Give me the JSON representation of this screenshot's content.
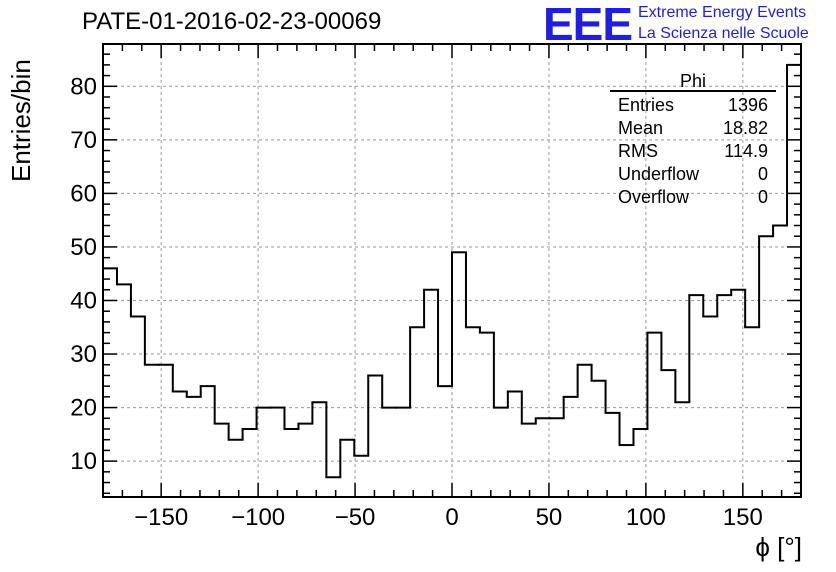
{
  "header": {
    "title": "PATE-01-2016-02-23-00069",
    "logo_mark": "EEE",
    "logo_line1": "Extreme Energy Events",
    "logo_line2": "La Scienza nelle Scuole"
  },
  "stats_box": {
    "name": "Phi",
    "rows": [
      {
        "label": "Entries",
        "value": "1396"
      },
      {
        "label": "Mean",
        "value": "18.82"
      },
      {
        "label": "RMS",
        "value": "114.9"
      },
      {
        "label": "Underflow",
        "value": "0"
      },
      {
        "label": "Overflow",
        "value": "0"
      }
    ]
  },
  "colors": {
    "line": "#000000",
    "grid": "#9a9a9a",
    "logo": "#1f1fe0"
  },
  "chart_data": {
    "type": "histogram",
    "title": "PATE-01-2016-02-23-00069",
    "xlabel": "ϕ [°]",
    "ylabel": "Entries/bin",
    "xlim": [
      -180,
      180
    ],
    "ylim": [
      3.3,
      87.9
    ],
    "bin_width": 7.2,
    "xticks": [
      -150,
      -100,
      -50,
      0,
      50,
      100,
      150
    ],
    "xtick_labels": [
      "−150",
      "−100",
      "−50",
      "0",
      "50",
      "100",
      "150"
    ],
    "yticks": [
      10,
      20,
      30,
      40,
      50,
      60,
      70,
      80
    ],
    "ytick_labels": [
      "10",
      "20",
      "30",
      "40",
      "50",
      "60",
      "70",
      "80"
    ],
    "grid": true,
    "values": [
      46,
      43,
      37,
      28,
      28,
      23,
      22,
      24,
      17,
      14,
      16,
      20,
      20,
      16,
      17,
      21,
      7,
      14,
      11,
      26,
      20,
      20,
      35,
      42,
      24,
      49,
      35,
      34,
      20,
      23,
      17,
      18,
      18,
      22,
      28,
      25,
      19,
      13,
      16,
      34,
      27,
      21,
      41,
      37,
      41,
      42,
      35,
      52,
      54,
      84
    ]
  }
}
